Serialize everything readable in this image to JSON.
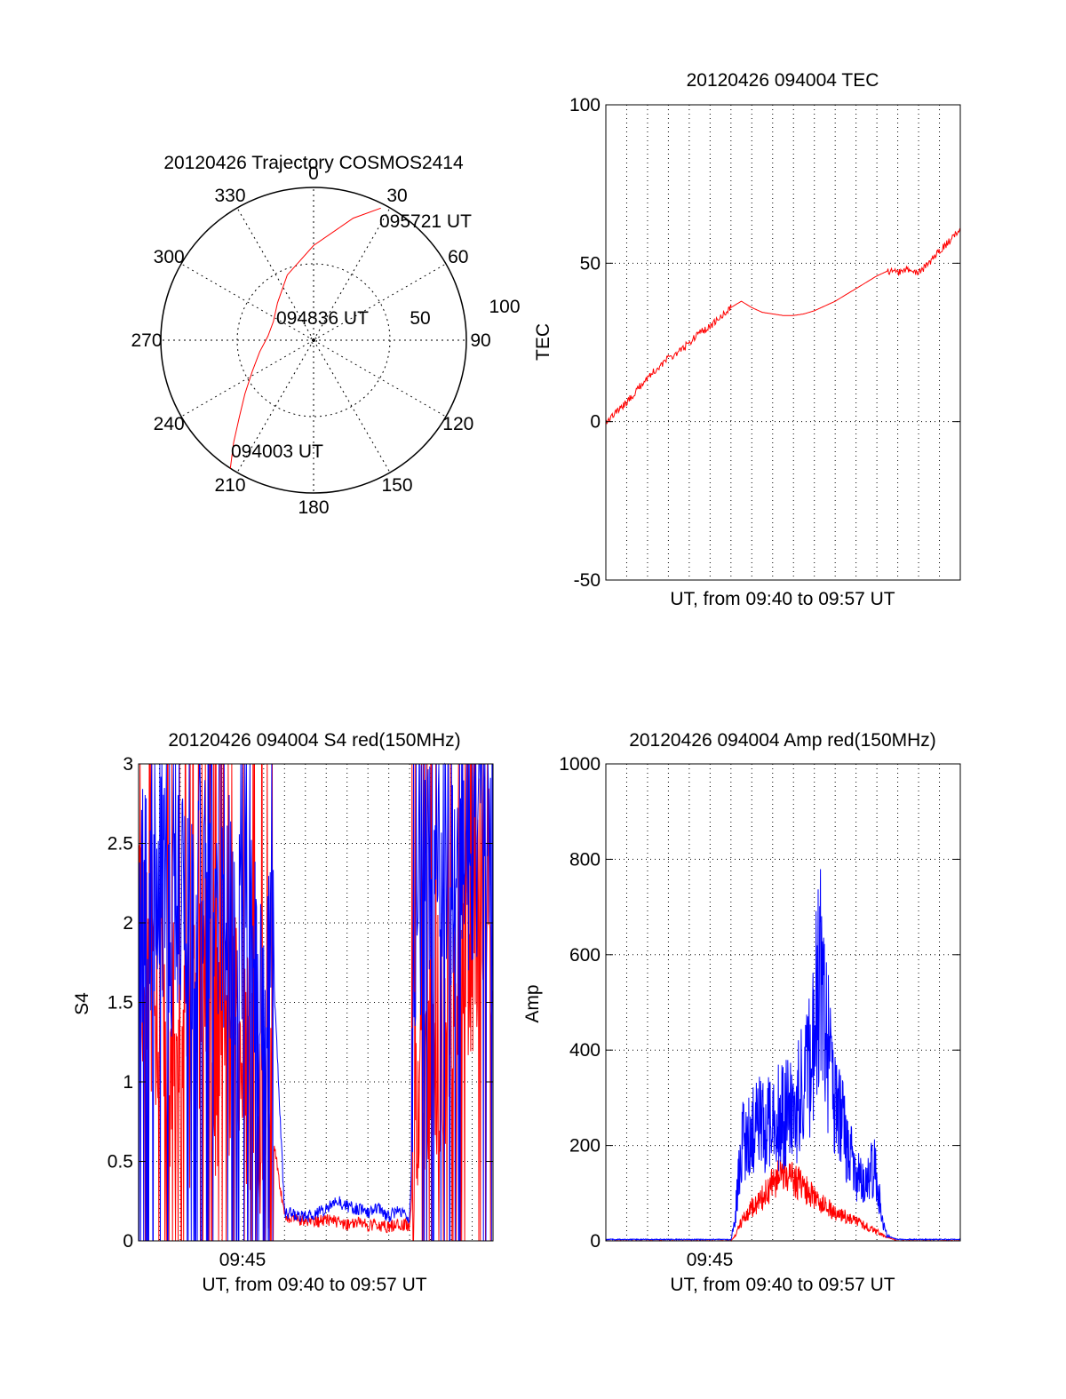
{
  "colors": {
    "red_series": "#ff0000",
    "blue_series": "#0000ff",
    "grid": "#000000"
  },
  "chart_data": [
    {
      "type": "polar",
      "title": "20120426 Trajectory COSMOS2414",
      "angle_labels": [
        "0",
        "30",
        "60",
        "90",
        "120",
        "150",
        "180",
        "210",
        "240",
        "270",
        "300",
        "330"
      ],
      "radial_labels": [
        "50",
        "100"
      ],
      "radial_range": [
        0,
        100
      ],
      "grid": true,
      "series": [
        {
          "color": "#ff0000",
          "azimuth_deg": [
            213,
            218,
            224,
            232,
            243,
            258,
            275,
            295,
            316,
            338,
            0,
            18,
            27
          ],
          "zenith_deg": [
            100,
            85,
            70,
            57,
            45,
            36,
            30,
            29,
            34,
            46,
            62,
            84,
            97
          ]
        }
      ],
      "annotations": [
        "095721 UT",
        "094836 UT",
        "094003 UT"
      ]
    },
    {
      "type": "line",
      "title": "20120426 094004 TEC",
      "xlabel": "UT, from 09:40 to 09:57 UT",
      "ylabel": "TEC",
      "xlim": [
        0,
        17
      ],
      "ylim": [
        -50,
        100
      ],
      "yticks": [
        "100",
        "50",
        "0",
        "-50"
      ],
      "grid": true,
      "series": [
        {
          "color": "#ff0000",
          "x": [
            0,
            0.5,
            1,
            1.5,
            2,
            2.5,
            3,
            3.5,
            4,
            4.5,
            5,
            5.5,
            6,
            6.5,
            7,
            7.5,
            8,
            8.5,
            9,
            9.5,
            10,
            10.5,
            11,
            11.5,
            12,
            12.5,
            13,
            13.5,
            14,
            14.5,
            15,
            15.5,
            16,
            16.5,
            17
          ],
          "y": [
            0,
            3,
            6,
            10,
            14,
            17,
            20,
            22,
            25,
            28,
            30,
            33,
            36,
            38,
            36,
            34.5,
            34,
            33.5,
            33.5,
            34,
            35,
            36.5,
            38,
            40,
            42,
            44,
            46,
            47.5,
            47,
            48,
            47,
            50,
            54,
            57,
            61
          ]
        }
      ]
    },
    {
      "type": "line",
      "title": "20120426 094004 S4 red(150MHz)",
      "xlabel": "UT, from 09:40 to 09:57 UT",
      "ylabel": "S4",
      "xlim": [
        0,
        17
      ],
      "ylim": [
        0,
        3
      ],
      "xticks": [
        "09:45"
      ],
      "yticks": [
        "3",
        "2.5",
        "2",
        "1.5",
        "1",
        "0.5",
        "0"
      ],
      "grid": true,
      "series": [
        {
          "color": "#ff0000",
          "x": [
            0,
            0.5,
            1,
            1.5,
            2,
            2.5,
            3,
            3.5,
            4,
            4.5,
            5,
            5.5,
            6,
            6.5,
            7,
            7.5,
            8,
            8.5,
            9,
            9.5,
            10,
            10.5,
            11,
            11.5,
            12,
            12.5,
            13,
            13.5,
            14,
            14.5,
            15,
            15.5,
            16,
            16.5,
            17
          ],
          "y": [
            1.8,
            1.5,
            1.6,
            1.2,
            1.4,
            1.1,
            1.5,
            1.2,
            1.0,
            1.3,
            1.1,
            1.0,
            0.9,
            0.6,
            0.15,
            0.14,
            0.13,
            0.12,
            0.13,
            0.12,
            0.1,
            0.11,
            0.1,
            0.1,
            0.09,
            0.1,
            0.1,
            1.0,
            1.2,
            1.3,
            1.4,
            1.6,
            1.9,
            2.3,
            2.1
          ]
        },
        {
          "color": "#0000ff",
          "x": [
            0,
            0.5,
            1,
            1.5,
            2,
            2.5,
            3,
            3.5,
            4,
            4.5,
            5,
            5.5,
            6,
            6.5,
            7,
            7.5,
            8,
            8.5,
            9,
            9.5,
            10,
            10.5,
            11,
            11.5,
            12,
            12.5,
            13,
            13.5,
            14,
            14.5,
            15,
            15.5,
            16,
            16.5,
            17
          ],
          "y": [
            2.2,
            2.0,
            2.4,
            1.9,
            2.1,
            1.8,
            2.3,
            2.0,
            1.9,
            2.1,
            1.8,
            1.9,
            1.7,
            1.6,
            0.18,
            0.16,
            0.15,
            0.17,
            0.2,
            0.25,
            0.22,
            0.2,
            0.18,
            0.2,
            0.15,
            0.2,
            0.12,
            2.2,
            2.4,
            2.5,
            2.3,
            2.6,
            2.4,
            2.7,
            2.6
          ]
        }
      ]
    },
    {
      "type": "line",
      "title": "20120426 094004 Amp red(150MHz)",
      "xlabel": "UT, from 09:40 to 09:57 UT",
      "ylabel": "Amp",
      "xlim": [
        0,
        17
      ],
      "ylim": [
        0,
        1000
      ],
      "xticks": [
        "09:45"
      ],
      "yticks": [
        "1000",
        "800",
        "600",
        "400",
        "200",
        "0"
      ],
      "grid": true,
      "series": [
        {
          "color": "#ff0000",
          "x": [
            0,
            1,
            2,
            3,
            4,
            5,
            6,
            6.2,
            6.5,
            7,
            7.5,
            8,
            8.5,
            9,
            9.5,
            10,
            10.5,
            11,
            11.5,
            12,
            12.5,
            13,
            13.2,
            13.5,
            14,
            15,
            16,
            17
          ],
          "y": [
            0,
            0,
            0,
            0,
            0,
            0,
            0,
            10,
            40,
            70,
            90,
            120,
            140,
            130,
            110,
            90,
            75,
            60,
            50,
            40,
            30,
            20,
            15,
            8,
            0,
            0,
            0,
            0
          ]
        },
        {
          "color": "#0000ff",
          "x": [
            0,
            1,
            2,
            3,
            4,
            5,
            6,
            6.2,
            6.5,
            7,
            7.5,
            8,
            8.5,
            9,
            9.5,
            10,
            10.3,
            10.6,
            11,
            11.5,
            12,
            12.5,
            12.8,
            13,
            13.2,
            13.5,
            14,
            15,
            16,
            17
          ],
          "y": [
            3,
            3,
            3,
            3,
            3,
            3,
            3,
            50,
            200,
            220,
            250,
            240,
            270,
            260,
            330,
            430,
            620,
            420,
            300,
            220,
            140,
            110,
            160,
            140,
            50,
            10,
            3,
            3,
            3,
            3
          ]
        }
      ]
    }
  ]
}
